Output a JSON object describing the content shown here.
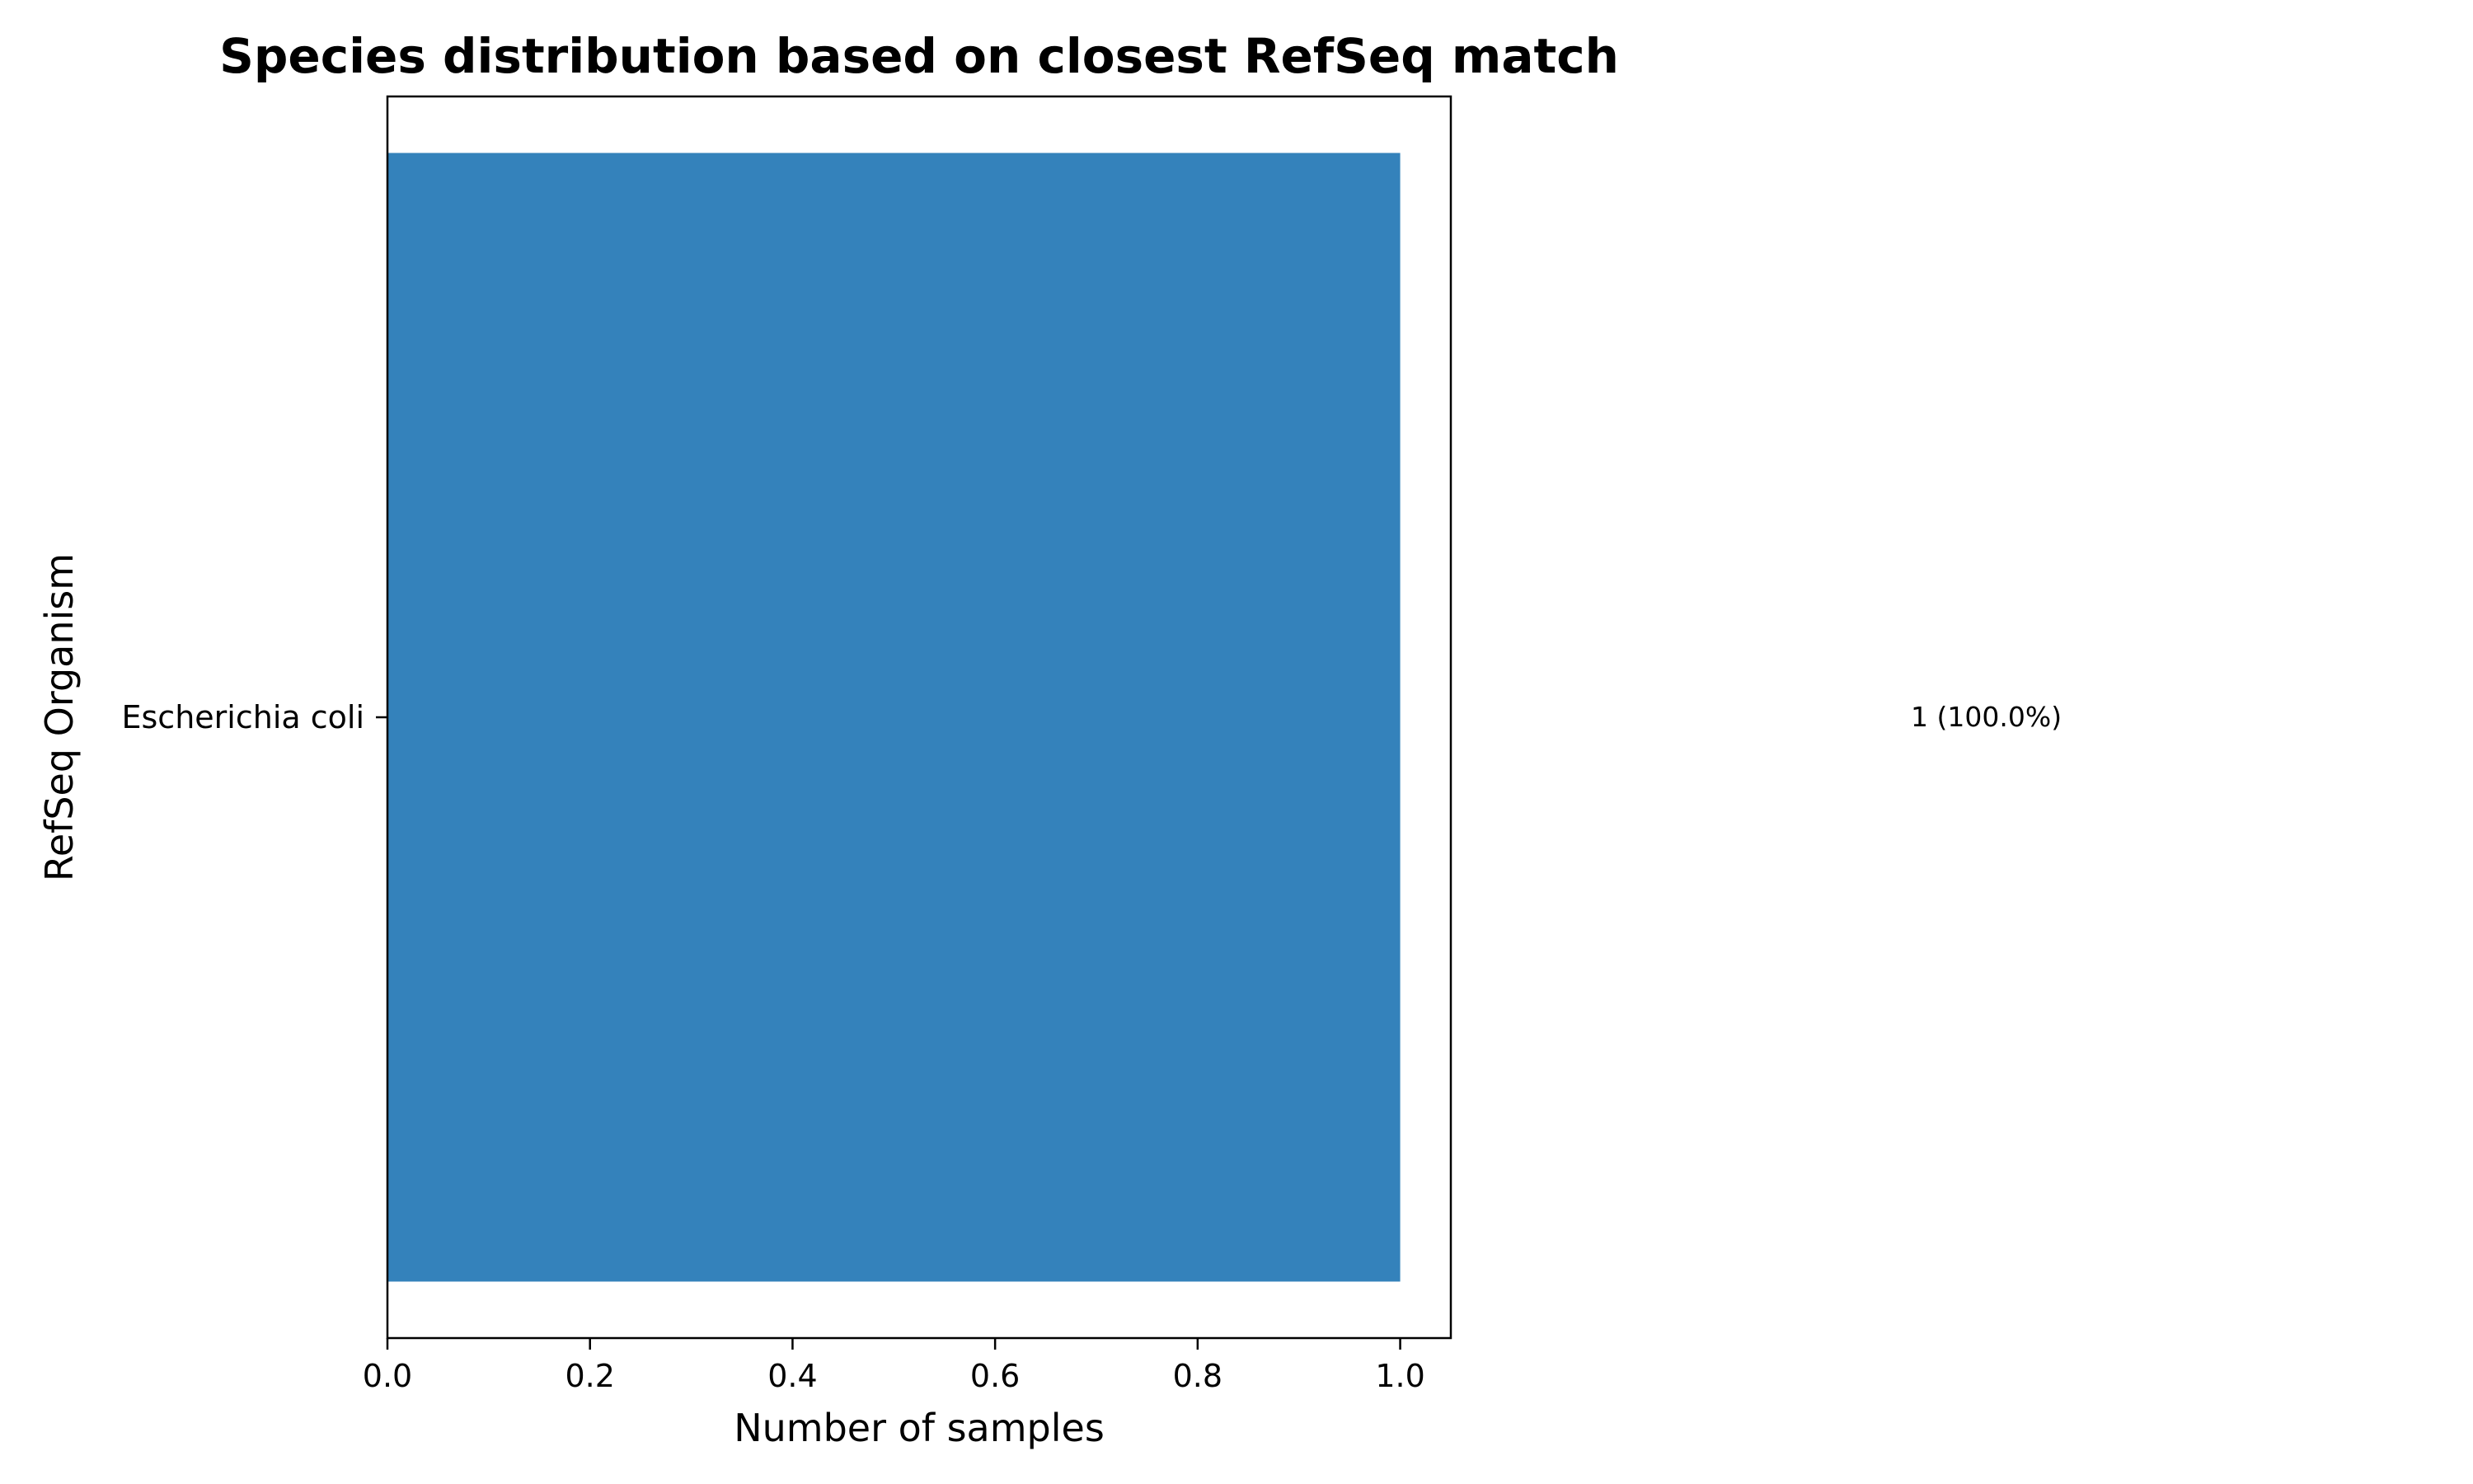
{
  "chart_data": {
    "type": "bar",
    "orientation": "horizontal",
    "title": "Species distribution based on closest RefSeq match",
    "xlabel": "Number of samples",
    "ylabel": "RefSeq Organism",
    "categories": [
      "Escherichia coli"
    ],
    "values": [
      1
    ],
    "data_labels": [
      "1 (100.0%)"
    ],
    "xlim": [
      0,
      1.05
    ],
    "xticks": [
      "0.0",
      "0.2",
      "0.4",
      "0.6",
      "0.8",
      "1.0"
    ],
    "grid": false,
    "bar_color": "#3482bb"
  }
}
